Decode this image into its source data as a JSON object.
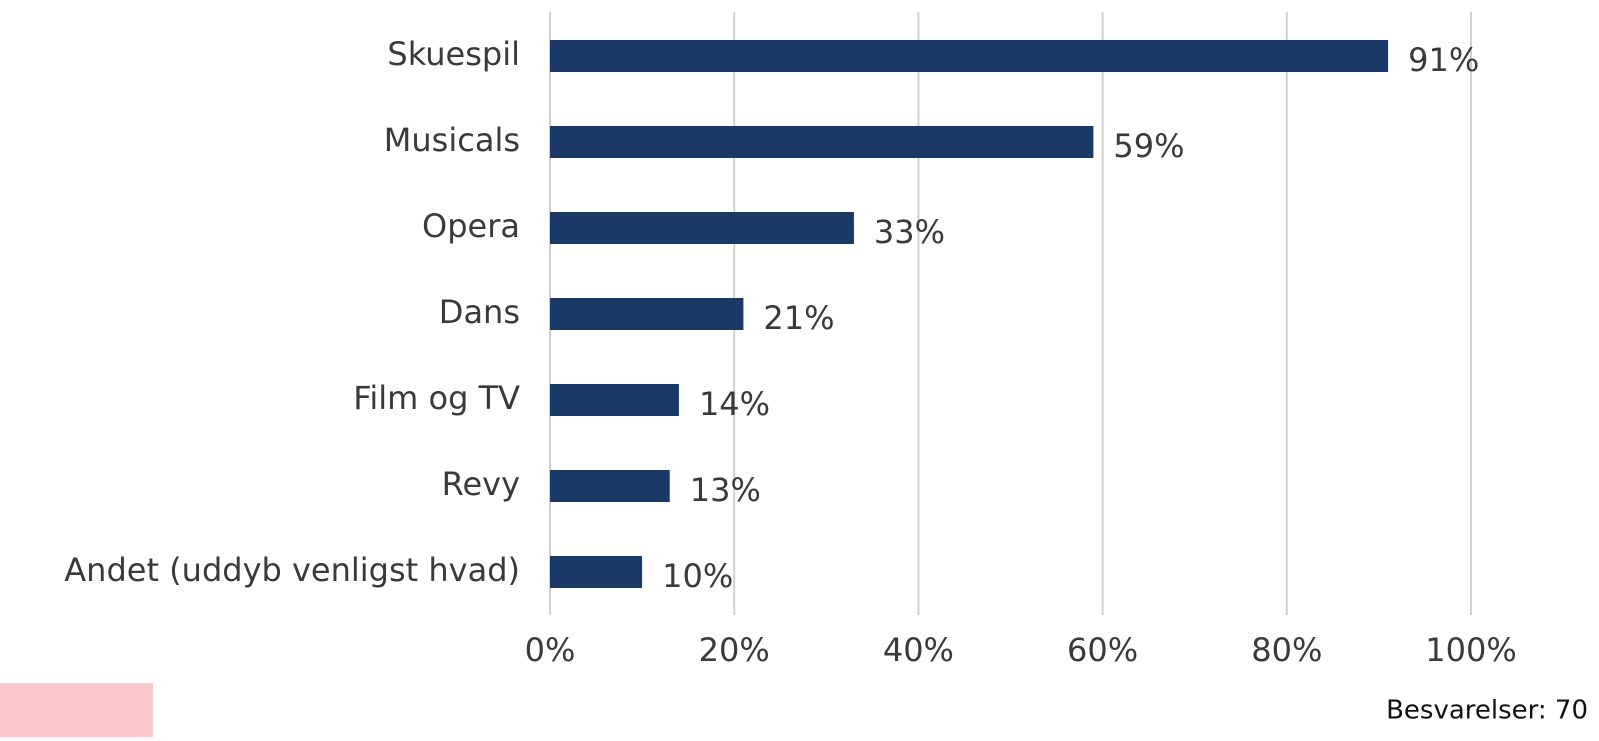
{
  "chart_data": {
    "type": "bar",
    "orientation": "horizontal",
    "categories": [
      "Skuespil",
      "Musicals",
      "Opera",
      "Dans",
      "Film og TV",
      "Revy",
      "Andet (uddyb venligst hvad)"
    ],
    "values": [
      91,
      59,
      33,
      21,
      14,
      13,
      10
    ],
    "value_labels": [
      "91%",
      "59%",
      "33%",
      "21%",
      "14%",
      "13%",
      "10%"
    ],
    "color": "#1b3966",
    "xlim": [
      0,
      100
    ],
    "xticks": [
      {
        "value": 0,
        "label": "0%"
      },
      {
        "value": 20,
        "label": "20%"
      },
      {
        "value": 40,
        "label": "40%"
      },
      {
        "value": 60,
        "label": "60%"
      },
      {
        "value": 80,
        "label": "80%"
      },
      {
        "value": 100,
        "label": "100%"
      }
    ],
    "grid": true,
    "annotation": "Besvarelser: 70"
  }
}
